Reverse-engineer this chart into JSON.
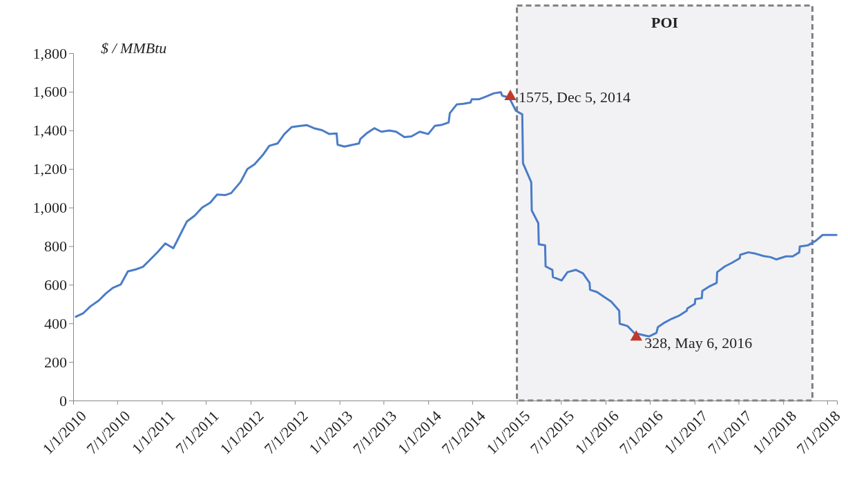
{
  "chart_data": {
    "type": "line",
    "ylabel": "$ / MMBtu",
    "ylim": [
      0,
      1800
    ],
    "yticks": [
      {
        "value": 0,
        "label": "0"
      },
      {
        "value": 200,
        "label": "200"
      },
      {
        "value": 400,
        "label": "400"
      },
      {
        "value": 600,
        "label": "600"
      },
      {
        "value": 800,
        "label": "800"
      },
      {
        "value": 1000,
        "label": "1,000"
      },
      {
        "value": 1200,
        "label": "1,200"
      },
      {
        "value": 1400,
        "label": "1,400"
      },
      {
        "value": 1600,
        "label": "1,600"
      },
      {
        "value": 1800,
        "label": "1,800"
      }
    ],
    "xlim": [
      "2010-01-01",
      "2018-08-10"
    ],
    "xticks": [
      {
        "value": "2010-01-01",
        "label": "1/1/2010"
      },
      {
        "value": "2010-07-01",
        "label": "7/1/2010"
      },
      {
        "value": "2011-01-01",
        "label": "1/1/2011"
      },
      {
        "value": "2011-07-01",
        "label": "7/1/2011"
      },
      {
        "value": "2012-01-01",
        "label": "1/1/2012"
      },
      {
        "value": "2012-07-01",
        "label": "7/1/2012"
      },
      {
        "value": "2013-01-01",
        "label": "1/1/2013"
      },
      {
        "value": "2013-07-01",
        "label": "7/1/2013"
      },
      {
        "value": "2014-01-01",
        "label": "1/1/2014"
      },
      {
        "value": "2014-07-01",
        "label": "7/1/2014"
      },
      {
        "value": "2015-01-01",
        "label": "1/1/2015"
      },
      {
        "value": "2015-07-01",
        "label": "7/1/2015"
      },
      {
        "value": "2016-01-01",
        "label": "1/1/2016"
      },
      {
        "value": "2016-07-01",
        "label": "7/1/2016"
      },
      {
        "value": "2017-01-01",
        "label": "1/1/2017"
      },
      {
        "value": "2017-07-01",
        "label": "7/1/2017"
      },
      {
        "value": "2018-01-01",
        "label": "1/1/2018"
      },
      {
        "value": "2018-07-01",
        "label": "7/1/2018"
      }
    ],
    "bands": [
      {
        "axis": "x",
        "from": "2015-01-01",
        "to": "2018-05-01",
        "label": "POI",
        "color": "#f2f2f5"
      }
    ],
    "series": [
      {
        "color": "#4a7cc7",
        "x": [
          "2010-01-12",
          "2010-02-10",
          "2010-03-13",
          "2010-04-16",
          "2010-05-15",
          "2010-06-13",
          "2010-07-16",
          "2010-08-14",
          "2010-09-17",
          "2010-10-15",
          "2010-11-13",
          "2010-12-16",
          "2011-01-15",
          "2011-02-17",
          "2011-03-16",
          "2011-04-14",
          "2011-05-16",
          "2011-06-16",
          "2011-07-19",
          "2011-08-16",
          "2011-09-20",
          "2011-10-13",
          "2011-11-21",
          "2011-12-19",
          "2012-01-17",
          "2012-02-20",
          "2012-03-18",
          "2012-04-21",
          "2012-05-19",
          "2012-06-18",
          "2012-07-25",
          "2012-08-19",
          "2012-09-18",
          "2012-10-21",
          "2012-11-20",
          "2012-12-20",
          "2012-12-24",
          "2013-01-21",
          "2013-03-22",
          "2013-03-28",
          "2013-04-25",
          "2013-05-24",
          "2013-06-22",
          "2013-07-25",
          "2013-08-22",
          "2013-09-25",
          "2013-10-24",
          "2013-11-27",
          "2014-01-01",
          "2014-01-28",
          "2014-02-27",
          "2014-03-26",
          "2014-03-31",
          "2014-04-28",
          "2014-05-26",
          "2014-06-24",
          "2014-06-29",
          "2014-07-28",
          "2014-08-25",
          "2014-09-28",
          "2014-10-27",
          "2014-11-01",
          "2014-11-30",
          "2014-12-28",
          "2015-01-23",
          "2015-01-26",
          "2015-03-01",
          "2015-03-03",
          "2015-03-30",
          "2015-04-01",
          "2015-04-27",
          "2015-04-29",
          "2015-05-27",
          "2015-05-29",
          "2015-07-04",
          "2015-07-28",
          "2015-09-01",
          "2015-09-30",
          "2015-10-27",
          "2015-10-29",
          "2015-11-27",
          "2015-12-25",
          "2016-01-24",
          "2016-02-26",
          "2016-02-28",
          "2016-03-31",
          "2016-04-28",
          "2016-06-28",
          "2016-07-28",
          "2016-08-03",
          "2016-08-31",
          "2016-09-28",
          "2016-10-31",
          "2016-11-30",
          "2016-12-02",
          "2017-01-02",
          "2017-01-04",
          "2017-01-31",
          "2017-02-02",
          "2017-03-04",
          "2017-04-02",
          "2017-04-04",
          "2017-05-06",
          "2017-06-03",
          "2017-07-06",
          "2017-07-08",
          "2017-08-10",
          "2017-09-09",
          "2017-10-12",
          "2017-11-10",
          "2017-12-03",
          "2018-01-12",
          "2018-02-09",
          "2018-03-08",
          "2018-03-10",
          "2018-04-12",
          "2018-05-15",
          "2018-06-12",
          "2018-08-08"
        ],
        "values": [
          434,
          451,
          488,
          518,
          554,
          584,
          602,
          669,
          680,
          693,
          729,
          771,
          814,
          789,
          856,
          928,
          958,
          1000,
          1025,
          1067,
          1065,
          1075,
          1133,
          1200,
          1224,
          1272,
          1320,
          1332,
          1381,
          1417,
          1423,
          1427,
          1411,
          1401,
          1381,
          1384,
          1326,
          1316,
          1332,
          1356,
          1387,
          1411,
          1393,
          1399,
          1393,
          1365,
          1369,
          1393,
          1381,
          1423,
          1429,
          1441,
          1489,
          1534,
          1538,
          1544,
          1561,
          1561,
          1574,
          1592,
          1598,
          1580,
          1570,
          1501,
          1483,
          1230,
          1131,
          985,
          919,
          810,
          804,
          695,
          677,
          640,
          622,
          665,
          677,
          659,
          610,
          574,
          562,
          538,
          513,
          465,
          398,
          386,
          350,
          332,
          350,
          380,
          404,
          423,
          441,
          465,
          477,
          501,
          525,
          531,
          568,
          592,
          610,
          665,
          695,
          713,
          737,
          755,
          768,
          761,
          749,
          743,
          731,
          747,
          747,
          768,
          798,
          804,
          828,
          858,
          858
        ]
      },
      {
        "type": "scatter",
        "marker": "triangle",
        "color": "#c0392b",
        "x": [
          "2014-12-05",
          "2016-05-06"
        ],
        "values": [
          1575,
          328
        ],
        "value_labels": [
          "1575, Dec 5, 2014",
          "328, May 6, 2016"
        ]
      }
    ]
  }
}
